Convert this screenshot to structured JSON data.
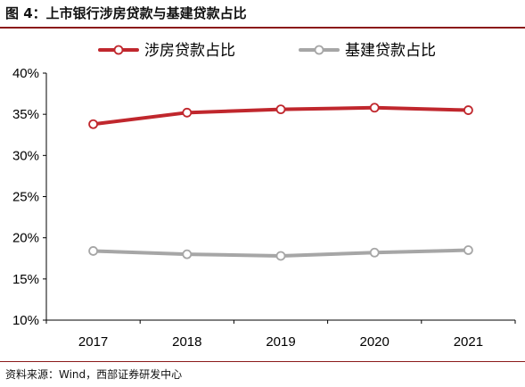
{
  "figure": {
    "title": "图 4：上市银行涉房贷款与基建贷款占比",
    "source": "资料来源：Wind，西部证券研发中心"
  },
  "chart_data": {
    "type": "line",
    "x": [
      "2017",
      "2018",
      "2019",
      "2020",
      "2021"
    ],
    "series": [
      {
        "name": "涉房贷款占比",
        "values": [
          33.8,
          35.2,
          35.6,
          35.8,
          35.5
        ],
        "color": "#c0272d"
      },
      {
        "name": "基建贷款占比",
        "values": [
          18.4,
          18.0,
          17.8,
          18.2,
          18.5
        ],
        "color": "#a6a6a6"
      }
    ],
    "ylim": [
      10,
      40
    ],
    "yticks": [
      10,
      15,
      20,
      25,
      30,
      35,
      40
    ],
    "ytick_labels": [
      "10%",
      "15%",
      "20%",
      "25%",
      "30%",
      "35%",
      "40%"
    ],
    "xlabel": "",
    "ylabel": "",
    "grid": false,
    "legend_position": "top"
  }
}
